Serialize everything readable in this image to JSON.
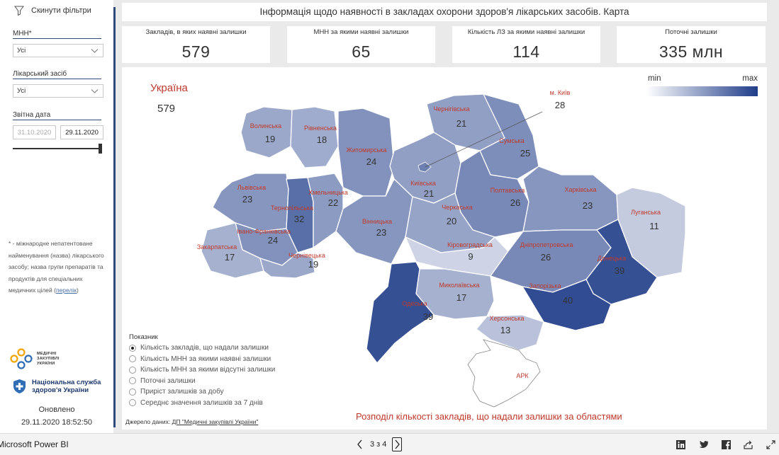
{
  "sidebar": {
    "reset_label": "Скинути фільтри",
    "filters": [
      {
        "label": "МНН*",
        "value": "Усі"
      },
      {
        "label": "Лікарський засіб",
        "value": "Усі"
      }
    ],
    "date_label": "Звітна дата",
    "date_from": "31.10.2020",
    "date_to": "29.11.2020",
    "footnote_text": "* - міжнародне непатентоване найменування (назва) лікарського засобу; назва групи препаратів та продуктів для спеціальних медичних цілей (",
    "footnote_link": "перелік",
    "footnote_tail": ")",
    "logo_medzakupivli": "МЕДИЧНІ ЗАКУПІВЛІ УКРАЇНИ",
    "logo_nszu": "Національна служба здоров'я України",
    "updated_label": "Оновлено",
    "updated_value": "29.11.2020 18:52:50"
  },
  "header": {
    "title": "Інформація щодо наявності в закладах охорони здоров'я лікарських засобів. Карта"
  },
  "kpis": [
    {
      "label": "Закладів, в яких наявні залишки",
      "value": "579"
    },
    {
      "label": "МНН за якими наявні залишки",
      "value": "65"
    },
    {
      "label": "Кількість ЛЗ за якими наявні залишки",
      "value": "114"
    },
    {
      "label": "Поточні залишки",
      "value": "335 млн"
    }
  ],
  "map": {
    "country_name": "Україна",
    "country_value": "579",
    "legend_min": "min",
    "legend_max": "max",
    "color_min": "#ffffff",
    "color_max": "#1f3c88",
    "caption": "Розподіл кількості закладів, що надали залишки за областями",
    "regions": [
      {
        "name": "Волинська",
        "value": "19"
      },
      {
        "name": "Рівненська",
        "value": "18"
      },
      {
        "name": "Житомирська",
        "value": "24"
      },
      {
        "name": "Чернігівська",
        "value": "21"
      },
      {
        "name": "Сумська",
        "value": "25"
      },
      {
        "name": "Львівська",
        "value": "23"
      },
      {
        "name": "Тернопільська",
        "value": "32"
      },
      {
        "name": "Хмельницька",
        "value": "22"
      },
      {
        "name": "Київська",
        "value": "21"
      },
      {
        "name": "Полтавська",
        "value": "26"
      },
      {
        "name": "Харківська",
        "value": "23"
      },
      {
        "name": "Луганська",
        "value": "11"
      },
      {
        "name": "Вінницька",
        "value": "23"
      },
      {
        "name": "Черкаська",
        "value": "20"
      },
      {
        "name": "Івано-Франківська",
        "value": "24"
      },
      {
        "name": "Закарпатська",
        "value": "17"
      },
      {
        "name": "Чернівецька",
        "value": "19"
      },
      {
        "name": "Кіровоградська",
        "value": "9"
      },
      {
        "name": "Дніпропетровська",
        "value": "26"
      },
      {
        "name": "Донецька",
        "value": "39"
      },
      {
        "name": "Миколаївська",
        "value": "17"
      },
      {
        "name": "Запорізька",
        "value": "40"
      },
      {
        "name": "Одеська",
        "value": "39"
      },
      {
        "name": "Херсонська",
        "value": "13"
      }
    ],
    "kyiv_city": {
      "name": "м. Київ",
      "value": "28"
    },
    "crimea_label": "АРК"
  },
  "indicator": {
    "title": "Показник",
    "selected": 0,
    "options": [
      "Кількість закладів, що надали залишки",
      "Кількість МНН за якими наявні залишки",
      "Кількість МНН за якими відсутні залишки",
      "Поточні залишки",
      "Приріст залишків за добу",
      "Середнє значення залишків за 7 днів"
    ]
  },
  "source": {
    "prefix": "Джерело даних: ",
    "link": "ДП \"Медичні закупівлі України\""
  },
  "bottombar": {
    "app_name": "Microsoft Power BI",
    "page_indicator": "3 з 4"
  }
}
